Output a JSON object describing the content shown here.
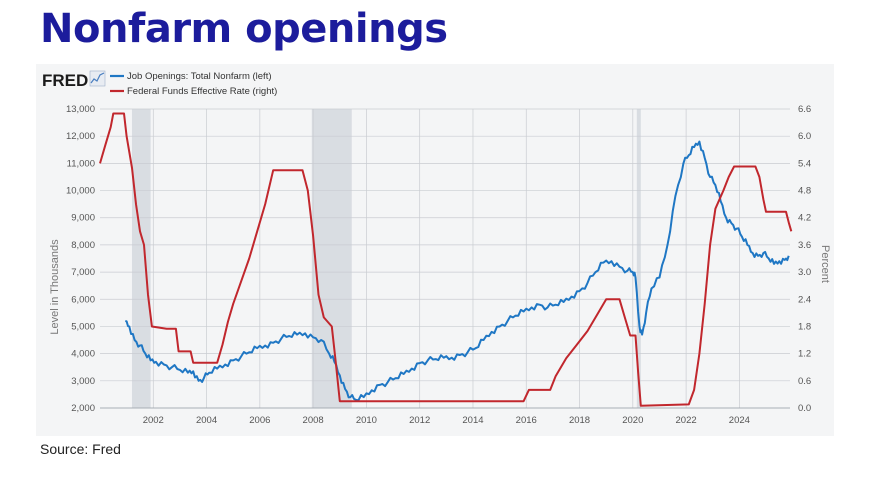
{
  "slide": {
    "title": "Nonfarm openings",
    "source": "Source: Fred"
  },
  "chart_data": {
    "type": "line",
    "brand": "FRED",
    "colors": {
      "openings": "#1f77c4",
      "fedfunds": "#c1272d",
      "recession": "#d9dde2"
    },
    "ylabel_left": "Level in Thousands",
    "ylabel_right": "Percent",
    "ylim_left": [
      2000,
      13000
    ],
    "ylim_right": [
      0,
      6.6
    ],
    "xlim": [
      2000.0,
      2025.9
    ],
    "x_ticks": [
      "2002",
      "2004",
      "2006",
      "2008",
      "2010",
      "2012",
      "2014",
      "2016",
      "2018",
      "2020",
      "2022",
      "2024"
    ],
    "left_ticks": [
      "2,000",
      "3,000",
      "4,000",
      "5,000",
      "6,000",
      "7,000",
      "8,000",
      "9,000",
      "10,000",
      "11,000",
      "12,000",
      "13,000"
    ],
    "right_ticks": [
      "0.0",
      "0.6",
      "1.2",
      "1.8",
      "2.4",
      "3.0",
      "3.6",
      "4.2",
      "4.8",
      "5.4",
      "6.0",
      "6.6"
    ],
    "grid": true,
    "legend_position": "top-left",
    "recessions": [
      [
        2001.2,
        2001.9
      ],
      [
        2007.95,
        2009.45
      ],
      [
        2020.15,
        2020.3
      ]
    ],
    "series": [
      {
        "name": "Job Openings: Total Nonfarm (left)",
        "axis": "left",
        "points": [
          [
            2000.95,
            5200
          ],
          [
            2001.1,
            5000
          ],
          [
            2001.3,
            4500
          ],
          [
            2001.5,
            4300
          ],
          [
            2001.7,
            4000
          ],
          [
            2001.9,
            3750
          ],
          [
            2002.1,
            3700
          ],
          [
            2002.4,
            3600
          ],
          [
            2002.7,
            3500
          ],
          [
            2003.0,
            3400
          ],
          [
            2003.3,
            3300
          ],
          [
            2003.5,
            3350
          ],
          [
            2003.7,
            3000
          ],
          [
            2003.9,
            3100
          ],
          [
            2004.1,
            3300
          ],
          [
            2004.4,
            3450
          ],
          [
            2004.7,
            3600
          ],
          [
            2005.0,
            3750
          ],
          [
            2005.3,
            3900
          ],
          [
            2005.6,
            4050
          ],
          [
            2005.9,
            4200
          ],
          [
            2006.2,
            4300
          ],
          [
            2006.5,
            4400
          ],
          [
            2006.8,
            4550
          ],
          [
            2007.1,
            4650
          ],
          [
            2007.4,
            4700
          ],
          [
            2007.7,
            4750
          ],
          [
            2008.0,
            4600
          ],
          [
            2008.3,
            4500
          ],
          [
            2008.6,
            4000
          ],
          [
            2008.8,
            3700
          ],
          [
            2009.0,
            3200
          ],
          [
            2009.2,
            2700
          ],
          [
            2009.4,
            2400
          ],
          [
            2009.6,
            2300
          ],
          [
            2009.9,
            2400
          ],
          [
            2010.2,
            2650
          ],
          [
            2010.5,
            2850
          ],
          [
            2010.8,
            2950
          ],
          [
            2011.1,
            3100
          ],
          [
            2011.4,
            3250
          ],
          [
            2011.7,
            3450
          ],
          [
            2012.0,
            3650
          ],
          [
            2012.3,
            3750
          ],
          [
            2012.6,
            3800
          ],
          [
            2012.9,
            3850
          ],
          [
            2013.2,
            3850
          ],
          [
            2013.5,
            3950
          ],
          [
            2013.8,
            4050
          ],
          [
            2014.1,
            4200
          ],
          [
            2014.4,
            4500
          ],
          [
            2014.7,
            4800
          ],
          [
            2015.0,
            5000
          ],
          [
            2015.3,
            5200
          ],
          [
            2015.6,
            5400
          ],
          [
            2015.9,
            5550
          ],
          [
            2016.2,
            5700
          ],
          [
            2016.5,
            5800
          ],
          [
            2016.8,
            5700
          ],
          [
            2017.1,
            5800
          ],
          [
            2017.4,
            5900
          ],
          [
            2017.7,
            6100
          ],
          [
            2018.0,
            6300
          ],
          [
            2018.3,
            6600
          ],
          [
            2018.6,
            7000
          ],
          [
            2018.9,
            7350
          ],
          [
            2019.2,
            7400
          ],
          [
            2019.5,
            7200
          ],
          [
            2019.8,
            7050
          ],
          [
            2020.0,
            7000
          ],
          [
            2020.1,
            6800
          ],
          [
            2020.25,
            5000
          ],
          [
            2020.35,
            4700
          ],
          [
            2020.5,
            5500
          ],
          [
            2020.7,
            6400
          ],
          [
            2021.0,
            6800
          ],
          [
            2021.3,
            8000
          ],
          [
            2021.6,
            9800
          ],
          [
            2021.9,
            11000
          ],
          [
            2022.1,
            11300
          ],
          [
            2022.3,
            11600
          ],
          [
            2022.5,
            11800
          ],
          [
            2022.7,
            11200
          ],
          [
            2022.9,
            10500
          ],
          [
            2023.1,
            10200
          ],
          [
            2023.3,
            9600
          ],
          [
            2023.5,
            9000
          ],
          [
            2023.7,
            8800
          ],
          [
            2023.9,
            8600
          ],
          [
            2024.1,
            8300
          ],
          [
            2024.3,
            8000
          ],
          [
            2024.5,
            7700
          ],
          [
            2024.7,
            7600
          ],
          [
            2024.9,
            7700
          ],
          [
            2025.1,
            7500
          ],
          [
            2025.3,
            7300
          ],
          [
            2025.5,
            7400
          ],
          [
            2025.7,
            7450
          ],
          [
            2025.85,
            7600
          ]
        ]
      },
      {
        "name": "Federal Funds Effective Rate (right)",
        "axis": "right",
        "points": [
          [
            2000.0,
            5.4
          ],
          [
            2000.2,
            5.8
          ],
          [
            2000.4,
            6.2
          ],
          [
            2000.5,
            6.5
          ],
          [
            2000.9,
            6.5
          ],
          [
            2001.0,
            6.0
          ],
          [
            2001.2,
            5.3
          ],
          [
            2001.35,
            4.5
          ],
          [
            2001.5,
            3.9
          ],
          [
            2001.65,
            3.6
          ],
          [
            2001.8,
            2.5
          ],
          [
            2001.95,
            1.8
          ],
          [
            2002.5,
            1.75
          ],
          [
            2002.85,
            1.75
          ],
          [
            2002.95,
            1.25
          ],
          [
            2003.4,
            1.25
          ],
          [
            2003.5,
            1.0
          ],
          [
            2004.4,
            1.0
          ],
          [
            2004.6,
            1.4
          ],
          [
            2004.8,
            1.9
          ],
          [
            2005.0,
            2.3
          ],
          [
            2005.3,
            2.8
          ],
          [
            2005.6,
            3.3
          ],
          [
            2005.9,
            3.9
          ],
          [
            2006.2,
            4.5
          ],
          [
            2006.5,
            5.25
          ],
          [
            2007.6,
            5.25
          ],
          [
            2007.8,
            4.8
          ],
          [
            2008.0,
            3.8
          ],
          [
            2008.2,
            2.5
          ],
          [
            2008.4,
            2.0
          ],
          [
            2008.7,
            1.8
          ],
          [
            2008.85,
            1.0
          ],
          [
            2009.0,
            0.15
          ],
          [
            2015.9,
            0.15
          ],
          [
            2016.1,
            0.4
          ],
          [
            2016.9,
            0.4
          ],
          [
            2017.1,
            0.7
          ],
          [
            2017.5,
            1.1
          ],
          [
            2017.9,
            1.4
          ],
          [
            2018.3,
            1.7
          ],
          [
            2018.7,
            2.1
          ],
          [
            2019.0,
            2.4
          ],
          [
            2019.5,
            2.4
          ],
          [
            2019.7,
            2.0
          ],
          [
            2019.9,
            1.6
          ],
          [
            2020.1,
            1.6
          ],
          [
            2020.2,
            0.8
          ],
          [
            2020.3,
            0.05
          ],
          [
            2022.1,
            0.08
          ],
          [
            2022.3,
            0.4
          ],
          [
            2022.5,
            1.2
          ],
          [
            2022.7,
            2.3
          ],
          [
            2022.9,
            3.6
          ],
          [
            2023.1,
            4.4
          ],
          [
            2023.4,
            4.8
          ],
          [
            2023.6,
            5.1
          ],
          [
            2023.8,
            5.33
          ],
          [
            2024.6,
            5.33
          ],
          [
            2024.75,
            5.1
          ],
          [
            2024.9,
            4.6
          ],
          [
            2025.0,
            4.33
          ],
          [
            2025.75,
            4.33
          ],
          [
            2025.85,
            4.1
          ],
          [
            2025.95,
            3.9
          ]
        ]
      }
    ]
  }
}
